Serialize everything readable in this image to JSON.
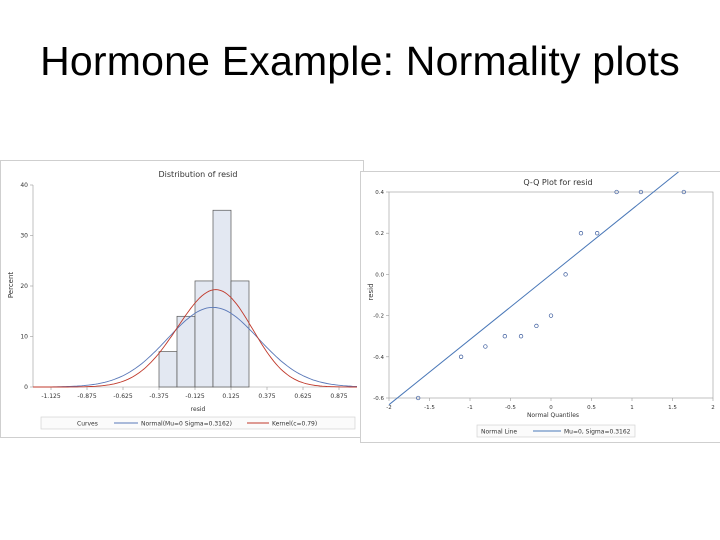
{
  "slide": {
    "title": "Hormone Example: Normality plots"
  },
  "chart_data": [
    {
      "type": "bar",
      "title": "Distribution of resid",
      "xlabel": "resid",
      "ylabel": "Percent",
      "bin_edges": [
        -0.5,
        -0.375,
        -0.25,
        -0.125,
        0.0,
        0.125,
        0.25,
        0.375,
        0.5
      ],
      "values": [
        0,
        7,
        14,
        21,
        35,
        21,
        0,
        0
      ],
      "xticks": [
        "-1.125",
        "-0.875",
        "-0.625",
        "-0.375",
        "-0.125",
        "0.125",
        "0.375",
        "0.625",
        "0.875"
      ],
      "yticks": [
        0,
        10,
        20,
        30,
        40
      ],
      "ylim": [
        0,
        40
      ],
      "curves": [
        {
          "name": "Normal(Mu=0 Sigma=0.3162)",
          "color": "#5a78b8",
          "mu": 0,
          "sigma": 0.3162
        },
        {
          "name": "Kernel(c=0.79)",
          "color": "#c0392b"
        }
      ],
      "legend": {
        "label": "Curves",
        "items": [
          "Normal(Mu=0 Sigma=0.3162)",
          "Kernel(c=0.79)"
        ]
      }
    },
    {
      "type": "scatter",
      "title": "Q-Q Plot for resid",
      "xlabel": "Normal Quantiles",
      "ylabel": "resid",
      "x": [
        -1.64,
        -1.11,
        -0.81,
        -0.57,
        -0.37,
        -0.18,
        0.0,
        0.18,
        0.37,
        0.57,
        0.81,
        1.11,
        1.64
      ],
      "y": [
        -0.6,
        -0.4,
        -0.35,
        -0.3,
        -0.3,
        -0.25,
        -0.2,
        0.0,
        0.2,
        0.2,
        0.4,
        0.4,
        0.4
      ],
      "xticks": [
        "-2",
        "-1.5",
        "-1",
        "-0.5",
        "0",
        "0.5",
        "1",
        "1.5",
        "2"
      ],
      "yticks": [
        "-0.6",
        "-0.4",
        "-0.2",
        "0.0",
        "0.2",
        "0.4"
      ],
      "xlim": [
        -2,
        2
      ],
      "ylim": [
        -0.6,
        0.4
      ],
      "reference_line": {
        "mu": 0,
        "sigma": 0.3162,
        "color": "#4a78b8"
      },
      "legend": {
        "label": "Normal Line",
        "items": [
          "Mu=0, Sigma=0.3162"
        ]
      }
    }
  ]
}
